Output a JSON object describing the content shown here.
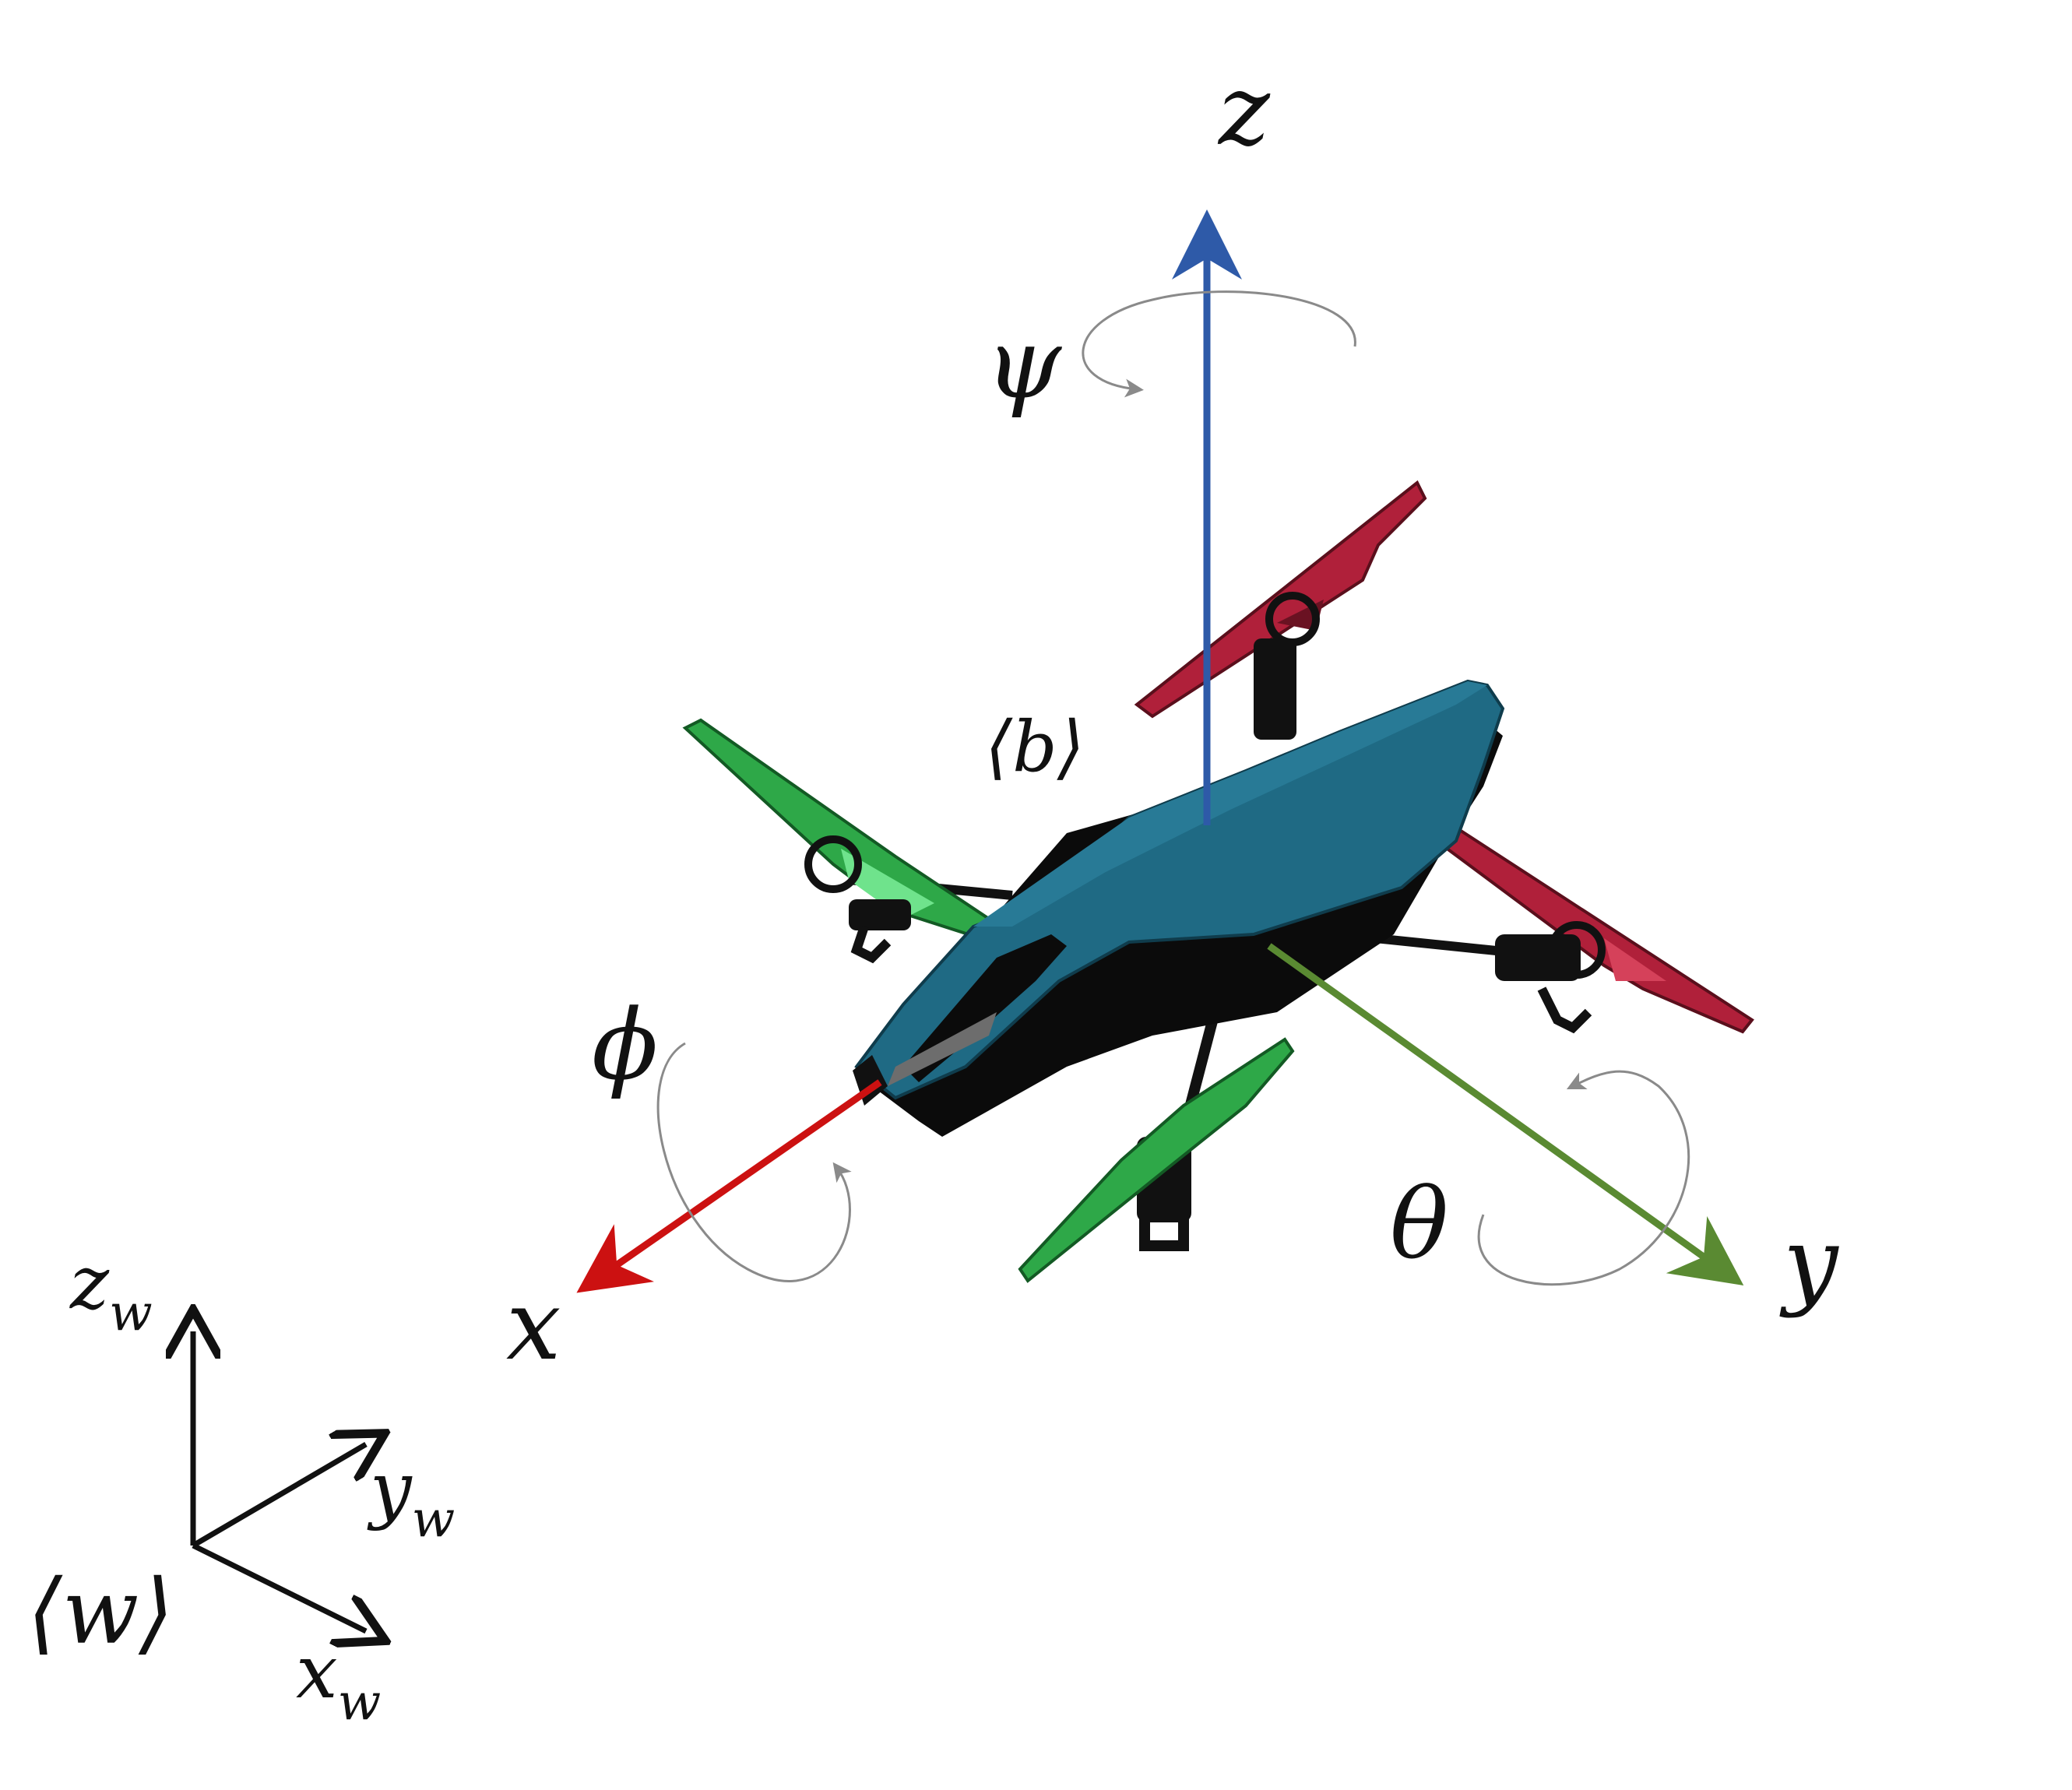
{
  "body_frame": {
    "label": "⟨b⟩",
    "axes": {
      "x": {
        "label": "x",
        "color": "#cc1111"
      },
      "y": {
        "label": "y",
        "color": "#5a8a32"
      },
      "z": {
        "label": "z",
        "color": "#2e5aa8"
      }
    },
    "rotations": {
      "roll": "ϕ",
      "pitch": "θ",
      "yaw": "ψ"
    }
  },
  "world_frame": {
    "label": "⟨w⟩",
    "axes": {
      "x": {
        "base": "x",
        "sub": "w"
      },
      "y": {
        "base": "y",
        "sub": "w"
      },
      "z": {
        "base": "z",
        "sub": "w"
      }
    },
    "color": "#111111"
  },
  "drone": {
    "hull_color": "#1f6a84",
    "front_propeller_color": "#2ea848",
    "rear_propeller_color": "#b0203a"
  }
}
